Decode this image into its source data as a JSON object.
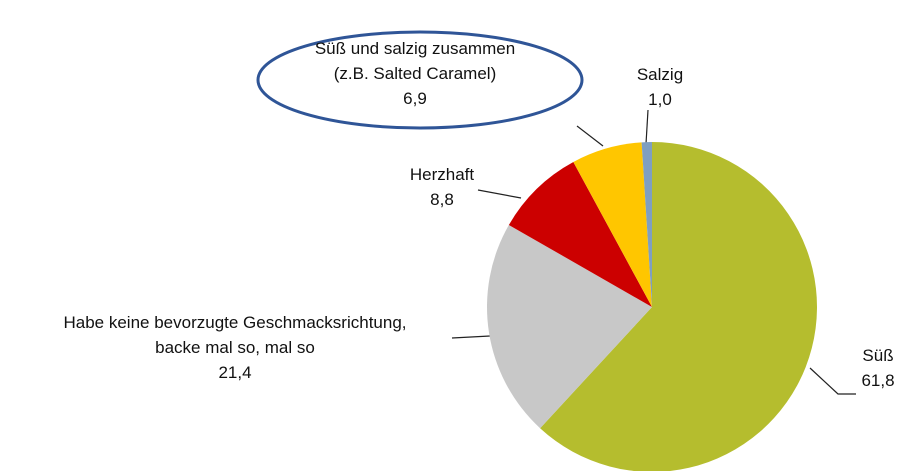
{
  "chart_data": {
    "type": "pie",
    "categories": [
      "Süß",
      "Habe keine bevorzugte Geschmacksrichtung,\nbacke mal so, mal so",
      "Herzhaft",
      "Süß und salzig zusammen\n(z.B. Salted Caramel)",
      "Salzig"
    ],
    "values": [
      61.8,
      21.4,
      8.8,
      6.9,
      1.0
    ],
    "value_labels": [
      "61,8",
      "21,4",
      "8,8",
      "6,9",
      "1,0"
    ],
    "colors": [
      "#b5bd2e",
      "#c8c8c8",
      "#cc0000",
      "#ffc600",
      "#7f9fc0"
    ]
  }
}
